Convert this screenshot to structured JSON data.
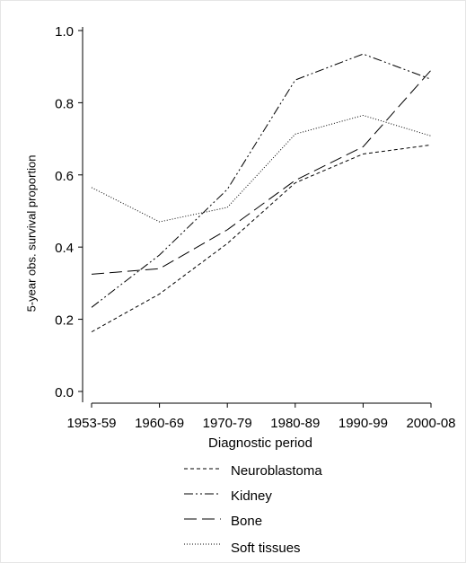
{
  "chart_data": {
    "type": "line",
    "x_label": "Diagnostic period",
    "y_label": "5-year obs. survival proportion",
    "categories": [
      "1953-59",
      "1960-69",
      "1970-79",
      "1980-89",
      "1990-99",
      "2000-08"
    ],
    "series": [
      {
        "name": "Neuroblastoma",
        "color": "#000000",
        "dash": "4,3",
        "values": [
          0.165,
          0.27,
          0.41,
          0.578,
          0.658,
          0.683
        ]
      },
      {
        "name": "Kidney",
        "color": "#000000",
        "dash": "10,3,2,3,2,3",
        "values": [
          0.233,
          0.378,
          0.56,
          0.863,
          0.935,
          0.865
        ]
      },
      {
        "name": "Bone",
        "color": "#000000",
        "dash": "14,6",
        "values": [
          0.325,
          0.34,
          0.448,
          0.585,
          0.678,
          0.89
        ]
      },
      {
        "name": "Soft tissues",
        "color": "#000000",
        "dash": "1,2",
        "values": [
          0.565,
          0.47,
          0.51,
          0.713,
          0.765,
          0.708
        ]
      }
    ],
    "ylim": [
      -0.03,
      1.01
    ],
    "yticks": [
      {
        "value": 0,
        "label": "0.0"
      },
      0.2,
      0.4,
      0.6,
      0.8,
      {
        "value": 1,
        "label": "1.0"
      }
    ],
    "grid": false,
    "legend": "bottom"
  }
}
